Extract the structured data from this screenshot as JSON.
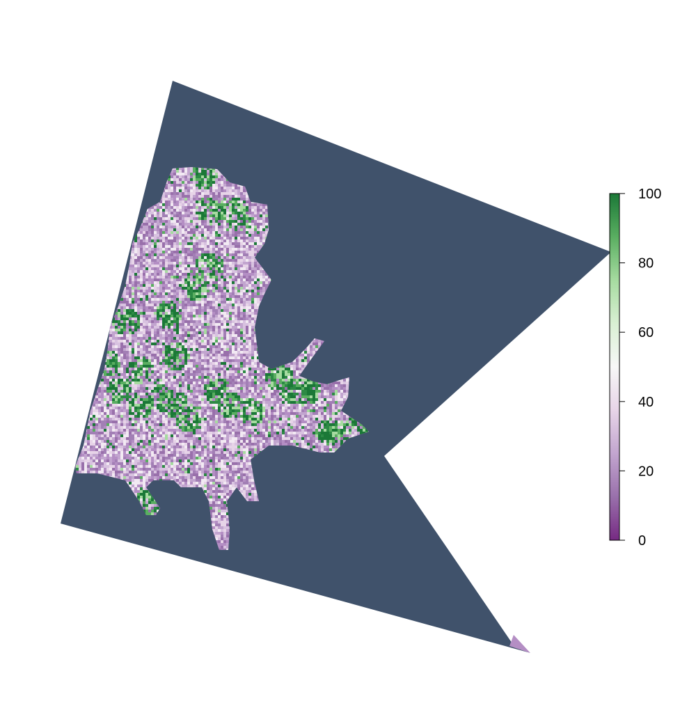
{
  "map": {
    "background_color": "#40526b",
    "palette": [
      "#762a83",
      "#9970ab",
      "#c2a5cf",
      "#e7d4e8",
      "#f7f7f7",
      "#d9f0d3",
      "#a6dba0",
      "#5aae61",
      "#1b7837"
    ]
  },
  "legend": {
    "min": 0,
    "max": 100,
    "ticks": [
      {
        "value": 0,
        "label": "0"
      },
      {
        "value": 20,
        "label": "20"
      },
      {
        "value": 40,
        "label": "40"
      },
      {
        "value": 60,
        "label": "60"
      },
      {
        "value": 80,
        "label": "80"
      },
      {
        "value": 100,
        "label": "100"
      }
    ]
  }
}
